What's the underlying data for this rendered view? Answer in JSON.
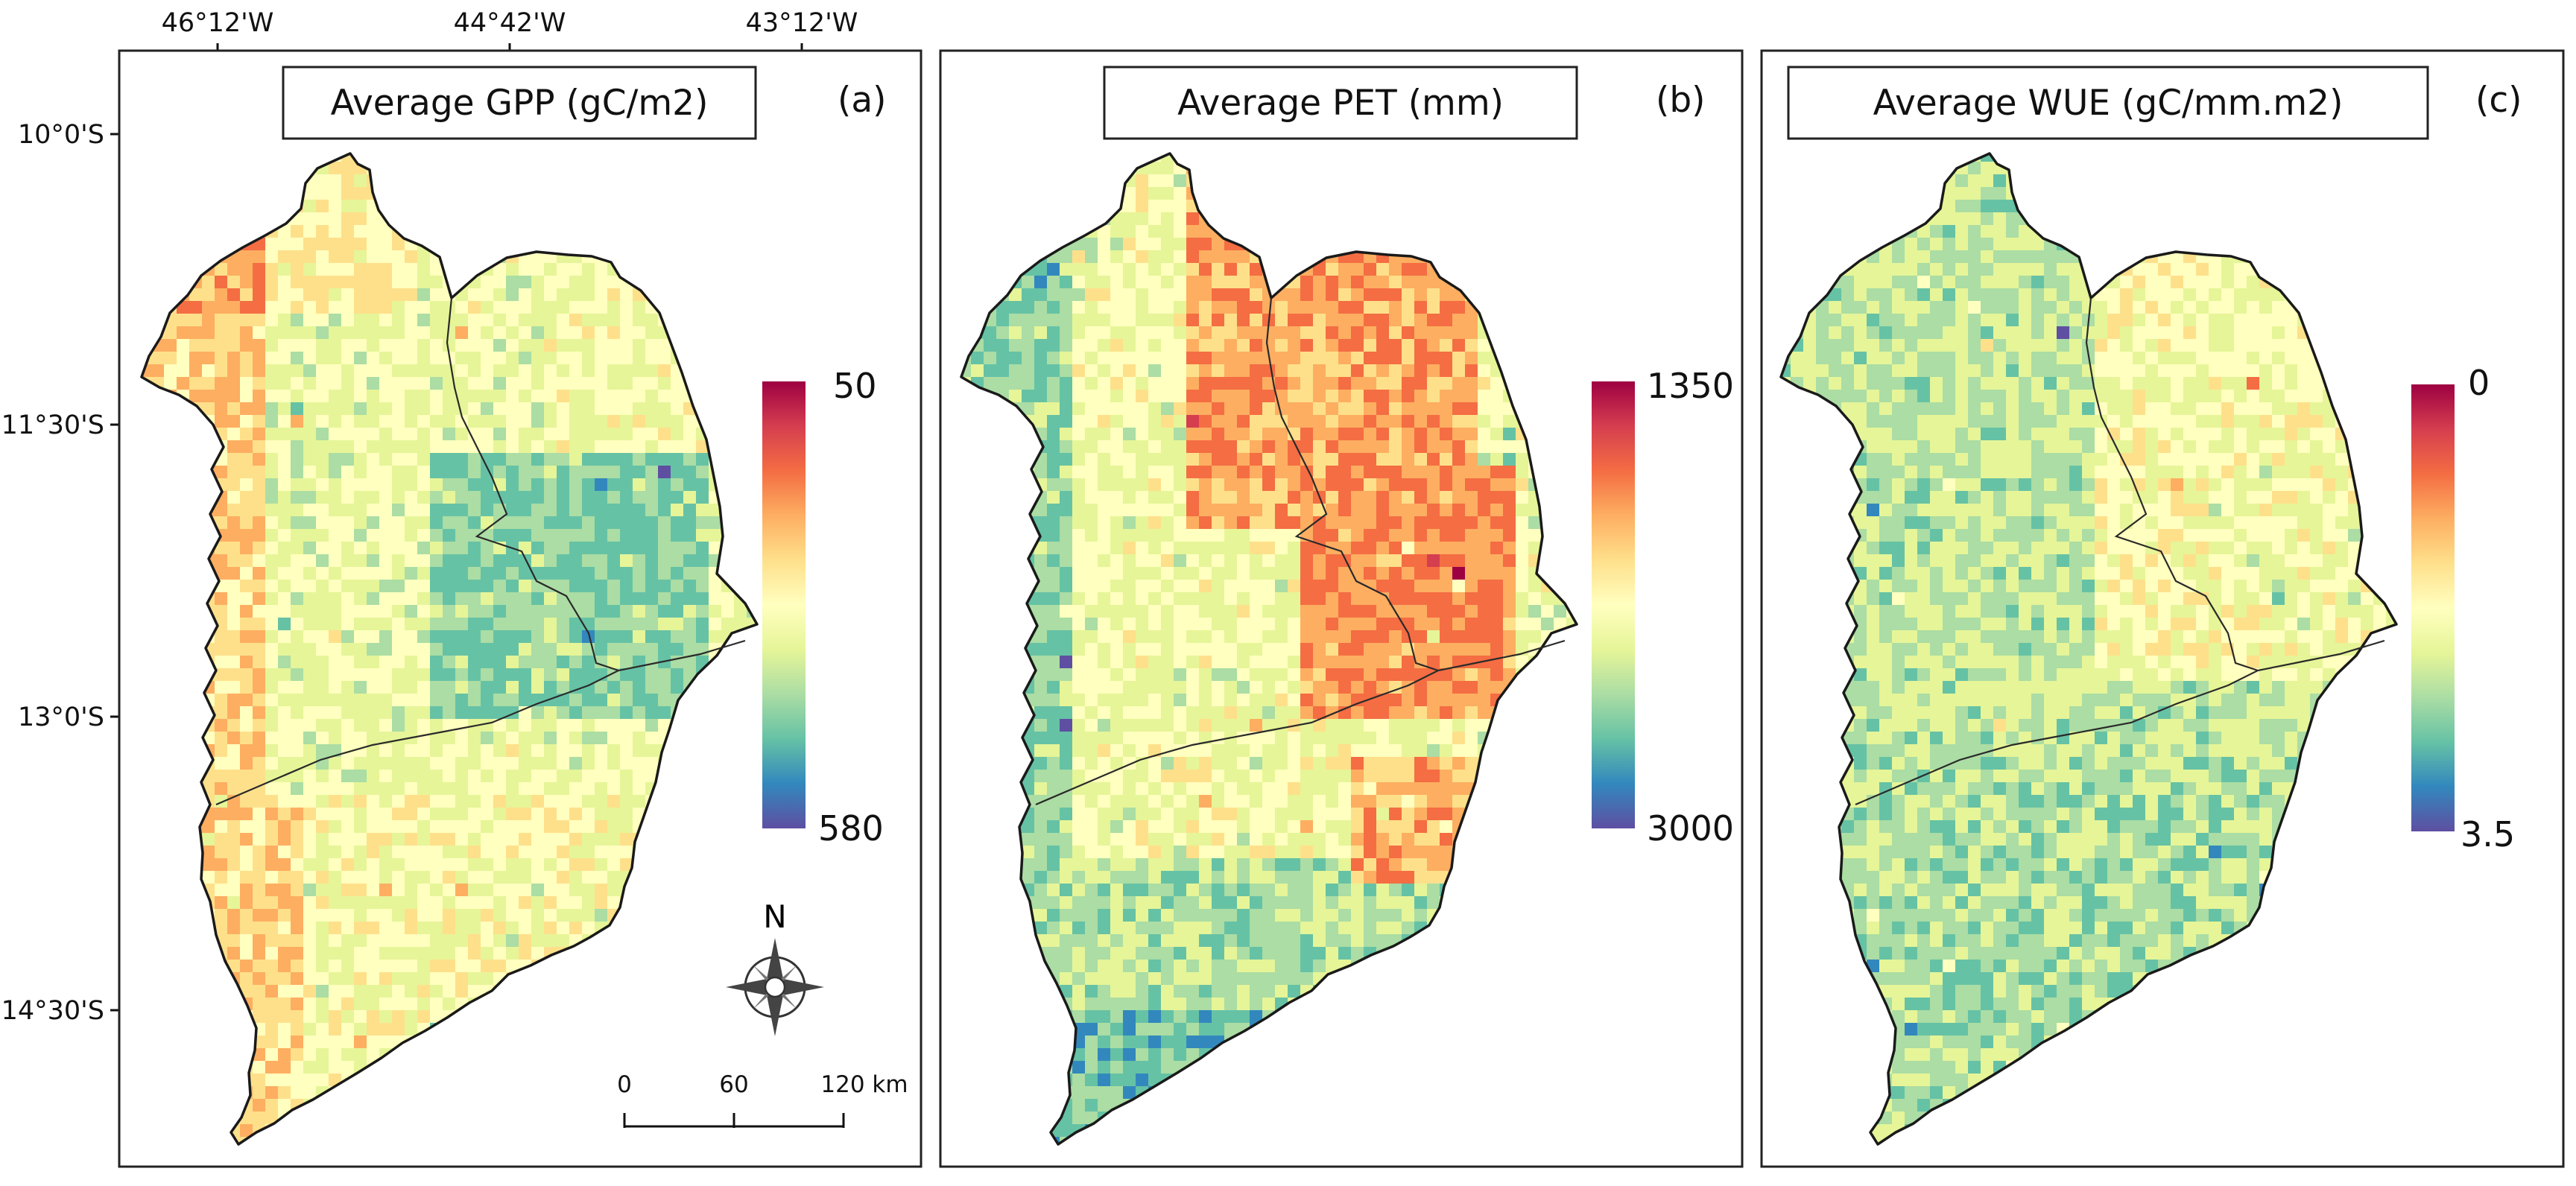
{
  "figure": {
    "longitude_labels": [
      "46°12'W",
      "44°42'W",
      "43°12'W"
    ],
    "latitude_labels": [
      "10°0'S",
      "11°30'S",
      "13°0'S",
      "14°30'S"
    ],
    "north_label": "N",
    "scale_bar": [
      "0",
      "60",
      "120 km"
    ]
  },
  "panels": [
    {
      "id": "a",
      "title": "Average GPP (gC/m2)",
      "panel_label": "(a)",
      "legend_top": "50",
      "legend_bottom": "580",
      "dominant": "gpp"
    },
    {
      "id": "b",
      "title": "Average PET (mm)",
      "panel_label": "(b)",
      "legend_top": "1350",
      "legend_bottom": "3000",
      "dominant": "pet"
    },
    {
      "id": "c",
      "title": "Average WUE (gC/mm.m2)",
      "panel_label": "(c)",
      "legend_top": "0",
      "legend_bottom": "3.5",
      "dominant": "wue"
    }
  ],
  "colors": {
    "spectral": [
      "#9e0142",
      "#d53e4f",
      "#f46d43",
      "#fdae61",
      "#fee08b",
      "#ffffbf",
      "#e6f598",
      "#abdda4",
      "#66c2a5",
      "#3288bd",
      "#5e4fa2"
    ],
    "frame": "#222222",
    "background": "#ffffff"
  }
}
